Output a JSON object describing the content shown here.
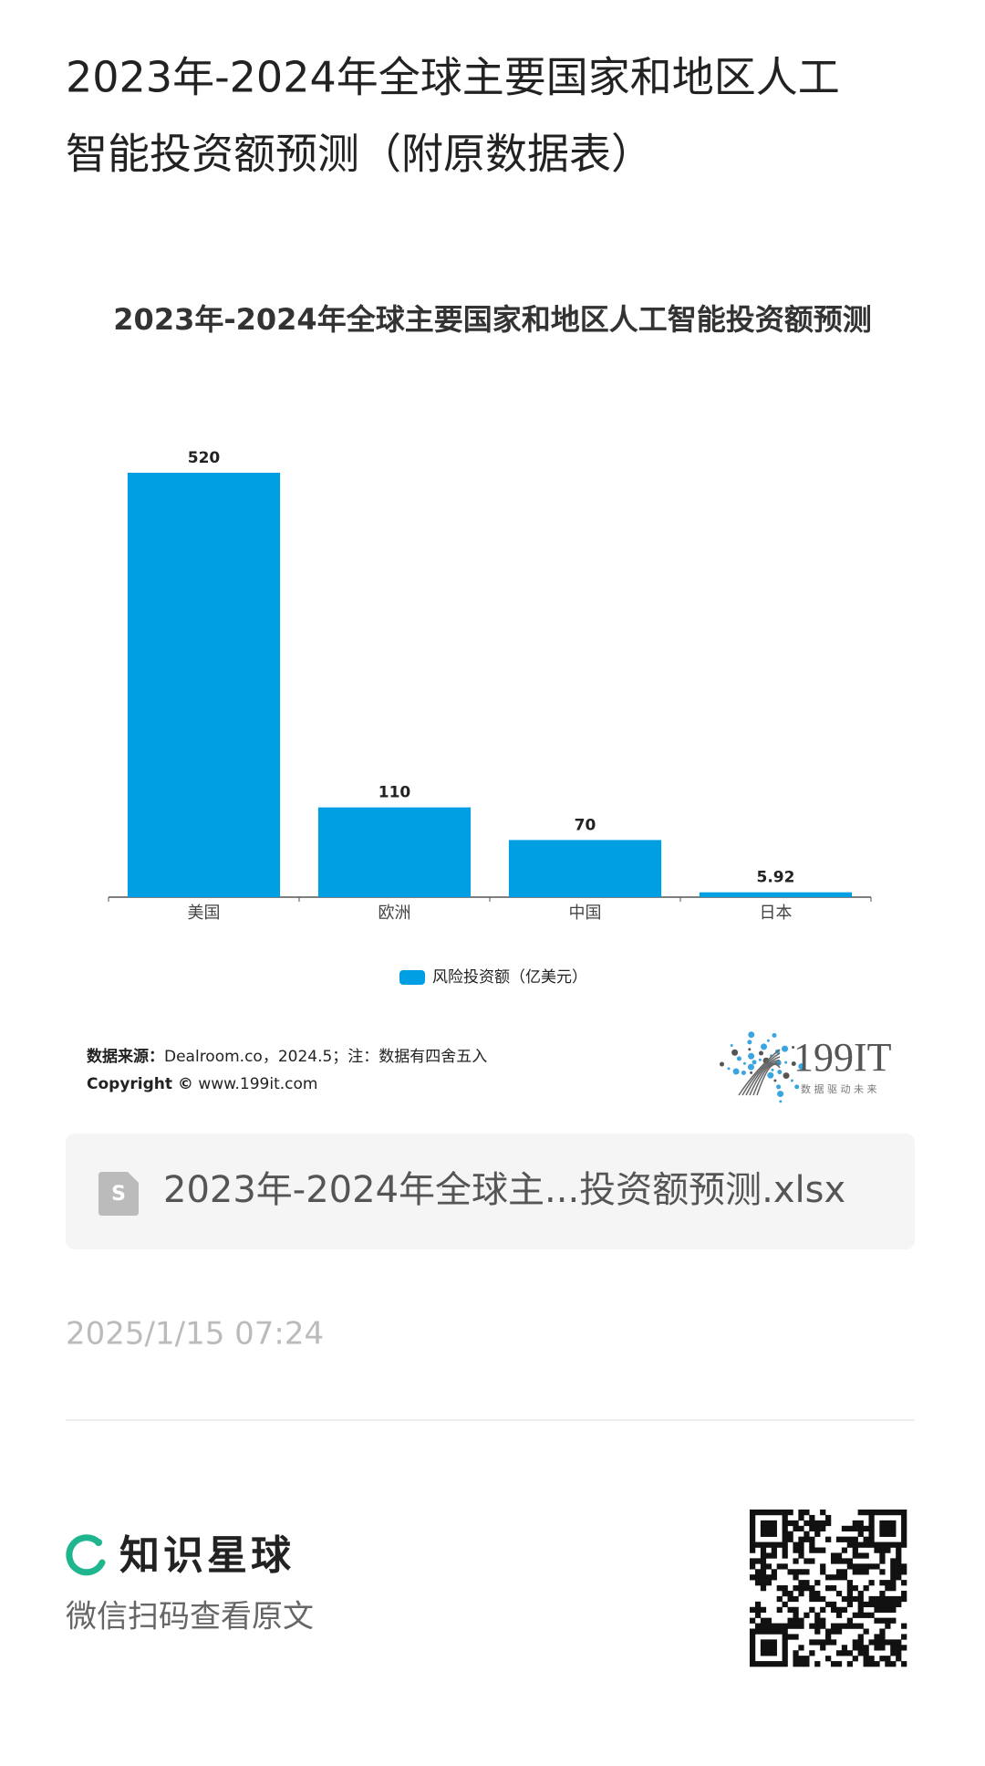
{
  "header": {
    "title_line1": "2023年-2024年全球主要国家和地区人工",
    "title_line2": "智能投资额预测（附原数据表）"
  },
  "chart_data": {
    "type": "bar",
    "title": "2023年-2024年全球主要国家和地区人工智能投资额预测",
    "categories": [
      "美国",
      "欧洲",
      "中国",
      "日本"
    ],
    "series": [
      {
        "name": "风险投资额（亿美元）",
        "color": "#009fe3",
        "values": [
          520,
          110,
          70,
          5.92
        ]
      }
    ]
  },
  "source": {
    "label": "数据来源：",
    "text": "Dealroom.co，2024.5；注：数据有四舍五入",
    "copyright_label": "Copyright ©",
    "copyright_text": " www.199it.com"
  },
  "logo": {
    "name": "199IT",
    "slogan": "数 据 驱 动 未 来"
  },
  "attachment": {
    "filename": "2023年-2024年全球主...投资额预测.xlsx"
  },
  "date": "2025/1/15 07:24",
  "footer": {
    "brand": "知识星球",
    "hint": "微信扫码查看原文"
  }
}
